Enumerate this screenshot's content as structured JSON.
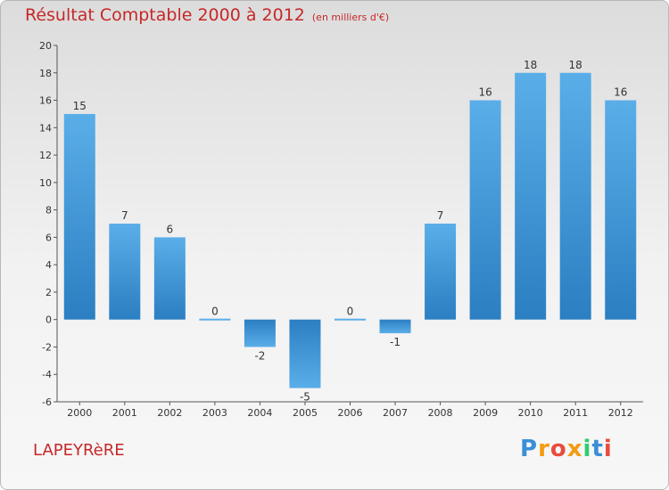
{
  "header": {
    "title": "Résultat Comptable 2000 à 2012",
    "subtitle": "(en milliers d'€)"
  },
  "footer": {
    "place": "LAPEYRèRE",
    "logo_text": "Proxiti"
  },
  "colors": {
    "bar_light": "#5aaee8",
    "bar_dark": "#2b7fc2",
    "title": "#c62828",
    "logo": [
      "#3a8fd6",
      "#f39c12",
      "#e74c3c",
      "#f39c12",
      "#2ecc71",
      "#3a8fd6",
      "#e74c3c"
    ]
  },
  "chart_data": {
    "type": "bar",
    "categories": [
      "2000",
      "2001",
      "2002",
      "2003",
      "2004",
      "2005",
      "2006",
      "2007",
      "2008",
      "2009",
      "2010",
      "2011",
      "2012"
    ],
    "values": [
      15,
      7,
      6,
      0,
      -2,
      -5,
      0,
      -1,
      7,
      16,
      18,
      18,
      16
    ],
    "ylim": [
      -6,
      20
    ],
    "yticks": [
      -6,
      -4,
      -2,
      0,
      2,
      4,
      6,
      8,
      10,
      12,
      14,
      16,
      18,
      20
    ],
    "grid": false
  }
}
